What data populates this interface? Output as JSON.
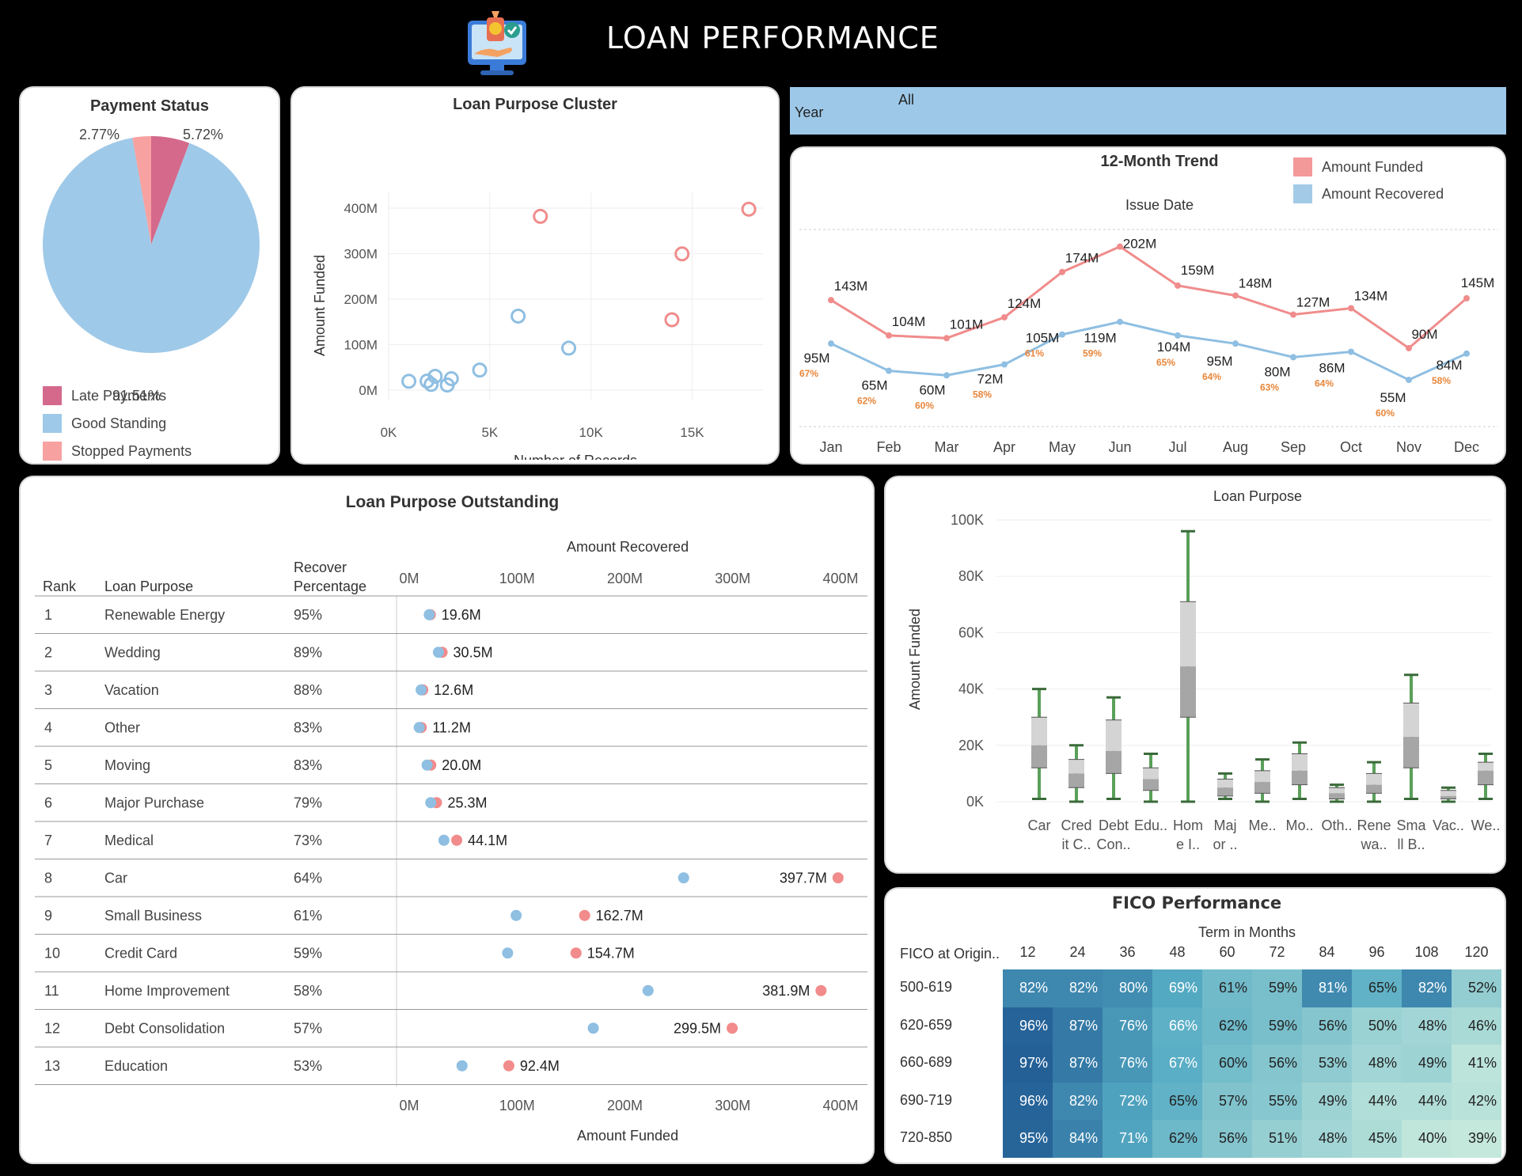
{
  "header": {
    "title": "LOAN PERFORMANCE",
    "logo_icon": "loan-monitor-icon"
  },
  "year_filter": {
    "label": "Year",
    "value": "All"
  },
  "payment_status": {
    "title": "Payment Status",
    "chart_data": {
      "type": "pie",
      "slices": [
        {
          "name": "Late Payments",
          "label": "5.72%",
          "value": 5.72,
          "color": "#d4698c"
        },
        {
          "name": "Good Standing",
          "label": "91.51%",
          "value": 91.51,
          "color": "#9fc9e8"
        },
        {
          "name": "Stopped Payments",
          "label": "2.77%",
          "value": 2.77,
          "color": "#f7a1a1"
        }
      ]
    }
  },
  "cluster": {
    "title": "Loan Purpose Cluster",
    "xlabel": "Number of Records",
    "ylabel": "Amount Funded",
    "xticks": [
      "0K",
      "5K",
      "10K",
      "15K"
    ],
    "yticks": [
      "0M",
      "100M",
      "200M",
      "300M",
      "400M"
    ],
    "chart_data": {
      "type": "scatter",
      "xlim": [
        0,
        18500
      ],
      "ylim": [
        0,
        420
      ],
      "series": [
        {
          "color": "#f08c8c",
          "points": [
            [
              7500,
              381.9
            ],
            [
              17800,
              397.7
            ],
            [
              14500,
              299.5
            ],
            [
              14000,
              154.7
            ]
          ]
        },
        {
          "color": "#8fbfe2",
          "points": [
            [
              6400,
              162.7
            ],
            [
              8900,
              92.4
            ],
            [
              4500,
              44.1
            ],
            [
              1000,
              19.6
            ],
            [
              1900,
              20.0
            ],
            [
              2300,
              30.5
            ],
            [
              2100,
              12.6
            ],
            [
              2900,
              11.2
            ],
            [
              3100,
              25.3
            ]
          ]
        }
      ]
    }
  },
  "trend": {
    "title": "12-Month Trend",
    "subtitle": "Issue Date",
    "legend": [
      {
        "label": "Amount Funded",
        "color": "#f4999a"
      },
      {
        "label": "Amount Recovered",
        "color": "#a3cbe8"
      }
    ],
    "chart_data": {
      "type": "line",
      "categories": [
        "Jan",
        "Feb",
        "Mar",
        "Apr",
        "May",
        "Jun",
        "Jul",
        "Aug",
        "Sep",
        "Oct",
        "Nov",
        "Dec"
      ],
      "ylim": [
        0,
        220
      ],
      "series": [
        {
          "name": "Amount Funded",
          "color": "#f08c8c",
          "values": [
            143,
            104,
            101,
            124,
            174,
            202,
            159,
            148,
            127,
            134,
            90,
            145
          ],
          "labels": [
            "143M",
            "104M",
            "101M",
            "124M",
            "174M",
            "202M",
            "159M",
            "148M",
            "127M",
            "134M",
            "90M",
            "145M"
          ]
        },
        {
          "name": "Amount Recovered",
          "color": "#8fbfe2",
          "values": [
            95,
            65,
            60,
            72,
            105,
            119,
            104,
            95,
            80,
            86,
            55,
            84
          ],
          "labels": [
            "95M",
            "65M",
            "60M",
            "72M",
            "105M",
            "119M",
            "104M",
            "95M",
            "80M",
            "86M",
            "55M",
            "84M"
          ],
          "pct": [
            "67%",
            "62%",
            "60%",
            "58%",
            "61%",
            "59%",
            "65%",
            "64%",
            "63%",
            "64%",
            "60%",
            "58%"
          ]
        }
      ]
    }
  },
  "outstanding": {
    "title": "Loan Purpose Outstanding",
    "top_axis_title": "Amount Recovered",
    "bottom_axis_title": "Amount Funded",
    "col_rank": "Rank",
    "col_purpose": "Loan Purpose",
    "col_pct_line1": "Recover",
    "col_pct_line2": "Percentage",
    "ticks": [
      "0M",
      "100M",
      "200M",
      "300M",
      "400M"
    ],
    "chart_data": {
      "type": "dot",
      "xlim": [
        0,
        400
      ],
      "rows": [
        {
          "rank": "1",
          "purpose": "Renewable Energy",
          "pct": "95%",
          "funded": 19.6,
          "recovered": 18.6,
          "label": "19.6M"
        },
        {
          "rank": "2",
          "purpose": "Wedding",
          "pct": "89%",
          "funded": 30.5,
          "recovered": 27.1,
          "label": "30.5M"
        },
        {
          "rank": "3",
          "purpose": "Vacation",
          "pct": "88%",
          "funded": 12.6,
          "recovered": 11.1,
          "label": "12.6M"
        },
        {
          "rank": "4",
          "purpose": "Other",
          "pct": "83%",
          "funded": 11.2,
          "recovered": 9.3,
          "label": "11.2M"
        },
        {
          "rank": "5",
          "purpose": "Moving",
          "pct": "83%",
          "funded": 20.0,
          "recovered": 16.6,
          "label": "20.0M"
        },
        {
          "rank": "6",
          "purpose": "Major Purchase",
          "pct": "79%",
          "funded": 25.3,
          "recovered": 20.0,
          "label": "25.3M"
        },
        {
          "rank": "7",
          "purpose": "Medical",
          "pct": "73%",
          "funded": 44.1,
          "recovered": 32.2,
          "label": "44.1M"
        },
        {
          "rank": "8",
          "purpose": "Car",
          "pct": "64%",
          "funded": 397.7,
          "recovered": 254.5,
          "label": "397.7M"
        },
        {
          "rank": "9",
          "purpose": "Small Business",
          "pct": "61%",
          "funded": 162.7,
          "recovered": 99.2,
          "label": "162.7M"
        },
        {
          "rank": "10",
          "purpose": "Credit Card",
          "pct": "59%",
          "funded": 154.7,
          "recovered": 91.3,
          "label": "154.7M"
        },
        {
          "rank": "11",
          "purpose": "Home Improvement",
          "pct": "58%",
          "funded": 381.9,
          "recovered": 221.5,
          "label": "381.9M"
        },
        {
          "rank": "12",
          "purpose": "Debt Consolidation",
          "pct": "57%",
          "funded": 299.5,
          "recovered": 170.7,
          "label": "299.5M"
        },
        {
          "rank": "13",
          "purpose": "Education",
          "pct": "53%",
          "funded": 92.4,
          "recovered": 49.0,
          "label": "92.4M"
        }
      ]
    }
  },
  "boxplot": {
    "title": "Loan Purpose",
    "ylabel": "Amount Funded",
    "yticks": [
      "0K",
      "20K",
      "40K",
      "60K",
      "80K",
      "100K"
    ],
    "chart_data": {
      "type": "boxplot",
      "ylim": [
        0,
        100
      ],
      "boxes": [
        {
          "label1": "Car",
          "label2": "",
          "min": 1,
          "q1": 12,
          "med": 20,
          "q3": 30,
          "max": 40
        },
        {
          "label1": "Cred",
          "label2": "it C..",
          "min": 0,
          "q1": 5,
          "med": 10,
          "q3": 15,
          "max": 20
        },
        {
          "label1": "Debt",
          "label2": "Con..",
          "min": 1,
          "q1": 10,
          "med": 18,
          "q3": 29,
          "max": 37
        },
        {
          "label1": "Edu..",
          "label2": "",
          "min": 0,
          "q1": 4,
          "med": 8,
          "q3": 12,
          "max": 17
        },
        {
          "label1": "Hom",
          "label2": "e I..",
          "min": 0,
          "q1": 30,
          "med": 48,
          "q3": 71,
          "max": 96
        },
        {
          "label1": "Maj",
          "label2": "or ..",
          "min": 1,
          "q1": 2,
          "med": 5,
          "q3": 8,
          "max": 10
        },
        {
          "label1": "Me..",
          "label2": "",
          "min": 0,
          "q1": 3,
          "med": 7,
          "q3": 11,
          "max": 15
        },
        {
          "label1": "Mo..",
          "label2": "",
          "min": 1,
          "q1": 6,
          "med": 11,
          "q3": 17,
          "max": 21
        },
        {
          "label1": "Oth..",
          "label2": "",
          "min": 0,
          "q1": 1,
          "med": 3,
          "q3": 5,
          "max": 6
        },
        {
          "label1": "Rene",
          "label2": "wa..",
          "min": 0,
          "q1": 3,
          "med": 6,
          "q3": 10,
          "max": 14
        },
        {
          "label1": "Sma",
          "label2": "ll B..",
          "min": 1,
          "q1": 12,
          "med": 23,
          "q3": 35,
          "max": 45
        },
        {
          "label1": "Vac..",
          "label2": "",
          "min": 0,
          "q1": 1,
          "med": 2,
          "q3": 4,
          "max": 5
        },
        {
          "label1": "We..",
          "label2": "",
          "min": 1,
          "q1": 6,
          "med": 11,
          "q3": 14,
          "max": 17
        }
      ]
    }
  },
  "fico": {
    "title": "FICO Performance",
    "col_title": "Term in Months",
    "row_header": "FICO at Origin..",
    "cols": [
      "12",
      "24",
      "36",
      "48",
      "60",
      "72",
      "84",
      "96",
      "108",
      "120"
    ],
    "rows": [
      "500-619",
      "620-659",
      "660-689",
      "690-719",
      "720-850"
    ],
    "chart_data": {
      "type": "heatmap",
      "values": [
        [
          82,
          82,
          80,
          69,
          61,
          59,
          81,
          65,
          82,
          52
        ],
        [
          96,
          87,
          76,
          66,
          62,
          59,
          56,
          50,
          48,
          46
        ],
        [
          97,
          87,
          76,
          67,
          60,
          56,
          53,
          48,
          49,
          41
        ],
        [
          96,
          82,
          72,
          65,
          57,
          55,
          49,
          44,
          44,
          42
        ],
        [
          95,
          84,
          71,
          62,
          56,
          51,
          48,
          45,
          40,
          39
        ]
      ],
      "labels": [
        [
          "82%",
          "82%",
          "80%",
          "69%",
          "61%",
          "59%",
          "81%",
          "65%",
          "82%",
          "52%"
        ],
        [
          "96%",
          "87%",
          "76%",
          "66%",
          "62%",
          "59%",
          "56%",
          "50%",
          "48%",
          "46%"
        ],
        [
          "97%",
          "87%",
          "76%",
          "67%",
          "60%",
          "56%",
          "53%",
          "48%",
          "49%",
          "41%"
        ],
        [
          "96%",
          "82%",
          "72%",
          "65%",
          "57%",
          "55%",
          "49%",
          "44%",
          "44%",
          "42%"
        ],
        [
          "95%",
          "84%",
          "71%",
          "62%",
          "56%",
          "51%",
          "48%",
          "45%",
          "40%",
          "39%"
        ]
      ]
    }
  }
}
